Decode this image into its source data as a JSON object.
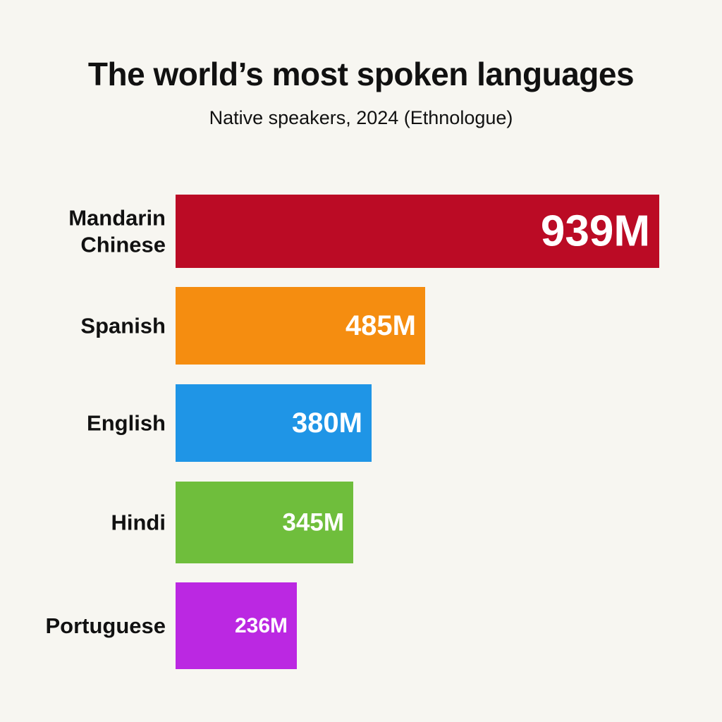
{
  "chart_data": {
    "type": "bar",
    "orientation": "horizontal",
    "title": "The world’s most spoken languages",
    "subtitle": "Native speakers, 2024 (Ethnologue)",
    "categories": [
      "Mandarin Chinese",
      "Spanish",
      "English",
      "Hindi",
      "Portuguese"
    ],
    "category_lines": [
      [
        "Mandarin",
        "Chinese"
      ],
      [
        "Spanish"
      ],
      [
        "English"
      ],
      [
        "Hindi"
      ],
      [
        "Portuguese"
      ]
    ],
    "values": [
      939,
      485,
      380,
      345,
      236
    ],
    "value_labels": [
      "939M",
      "485M",
      "380M",
      "345M",
      "236M"
    ],
    "unit": "M",
    "colors": [
      "#bb0b25",
      "#f58d10",
      "#1f95e6",
      "#6fbe3c",
      "#bb28e2"
    ],
    "xlim": [
      0,
      939
    ],
    "grid": false,
    "legend": "none"
  }
}
